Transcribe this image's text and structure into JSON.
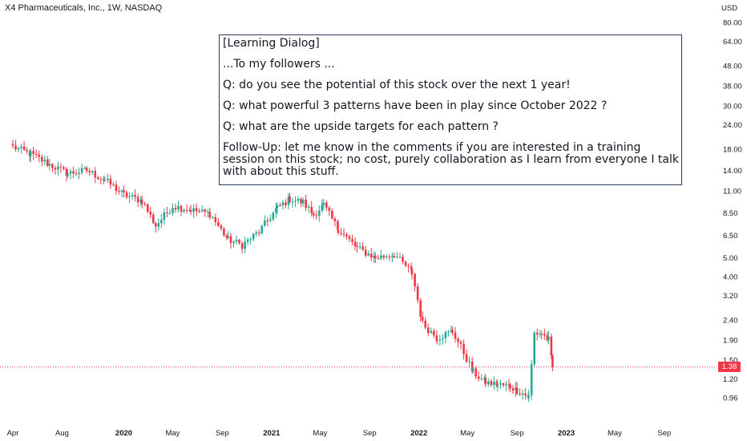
{
  "title": "X4 Pharmaceuticals, Inc., 1W, NASDAQ",
  "currency": "USD",
  "last_price_label": "1.38",
  "colors": {
    "up": "#22ab94",
    "down": "#f23645",
    "price_line": "#f23645",
    "box_border": "#2a3f5f"
  },
  "note": {
    "lines": [
      "[Learning Dialog]",
      "...To my followers ...",
      "Q: do you see the potential of this stock over the next 1 year!",
      "Q: what powerful 3 patterns have been in play since October 2022 ?",
      "Q: what are the upside targets for each pattern ?",
      "Follow-Up: let me know in the comments if you are interested in a training session on this stock; no cost, purely collaboration as I learn from everyone I talk with about this stuff."
    ]
  },
  "chart_data": {
    "type": "candlestick",
    "title": "X4 Pharmaceuticals, Inc., 1W, NASDAQ",
    "y_scale": "log",
    "ylim": [
      0.85,
      80
    ],
    "y_ticks": [
      "80.00",
      "64.00",
      "48.00",
      "38.00",
      "30.00",
      "24.00",
      "18.00",
      "14.00",
      "11.00",
      "8.50",
      "6.50",
      "5.00",
      "4.00",
      "3.20",
      "2.40",
      "1.90",
      "1.50",
      "1.20",
      "0.96"
    ],
    "x_ticks": [
      "Apr",
      "Aug",
      "2020",
      "May",
      "Sep",
      "2021",
      "May",
      "Sep",
      "2022",
      "May",
      "Sep",
      "2023",
      "May",
      "Sep"
    ],
    "bold_x_ticks": [
      "2020",
      "2021",
      "2022",
      "2023"
    ],
    "last_price": 1.38,
    "anchors": [
      {
        "date": "2019-04-01",
        "close": 18.5
      },
      {
        "date": "2019-05-15",
        "close": 17.0
      },
      {
        "date": "2019-07-01",
        "close": 15.0
      },
      {
        "date": "2019-08-15",
        "close": 13.5
      },
      {
        "date": "2019-10-01",
        "close": 14.0
      },
      {
        "date": "2019-11-15",
        "close": 12.5
      },
      {
        "date": "2020-01-01",
        "close": 10.5
      },
      {
        "date": "2020-02-15",
        "close": 9.8
      },
      {
        "date": "2020-03-20",
        "close": 7.3
      },
      {
        "date": "2020-05-01",
        "close": 9.2
      },
      {
        "date": "2020-06-15",
        "close": 8.8
      },
      {
        "date": "2020-08-01",
        "close": 8.4
      },
      {
        "date": "2020-09-15",
        "close": 6.2
      },
      {
        "date": "2020-10-20",
        "close": 5.8
      },
      {
        "date": "2020-12-01",
        "close": 6.8
      },
      {
        "date": "2021-01-15",
        "close": 9.0
      },
      {
        "date": "2021-02-15",
        "close": 10.0
      },
      {
        "date": "2021-03-20",
        "close": 9.6
      },
      {
        "date": "2021-04-15",
        "close": 8.3
      },
      {
        "date": "2021-05-10",
        "close": 9.3
      },
      {
        "date": "2021-06-15",
        "close": 7.0
      },
      {
        "date": "2021-08-01",
        "close": 5.6
      },
      {
        "date": "2021-09-15",
        "close": 5.0
      },
      {
        "date": "2021-11-01",
        "close": 5.2
      },
      {
        "date": "2021-12-15",
        "close": 4.2
      },
      {
        "date": "2022-01-10",
        "close": 2.3
      },
      {
        "date": "2022-02-15",
        "close": 1.95
      },
      {
        "date": "2022-03-25",
        "close": 2.1
      },
      {
        "date": "2022-04-15",
        "close": 1.75
      },
      {
        "date": "2022-05-15",
        "close": 1.3
      },
      {
        "date": "2022-06-15",
        "close": 1.15
      },
      {
        "date": "2022-07-15",
        "close": 1.12
      },
      {
        "date": "2022-08-15",
        "close": 1.1
      },
      {
        "date": "2022-09-01",
        "close": 1.05
      },
      {
        "date": "2022-09-30",
        "close": 0.97
      },
      {
        "date": "2022-10-14",
        "close": 2.05
      },
      {
        "date": "2022-11-01",
        "close": 2.05
      },
      {
        "date": "2022-11-18",
        "close": 1.9
      },
      {
        "date": "2022-11-28",
        "close": 1.38
      }
    ]
  }
}
